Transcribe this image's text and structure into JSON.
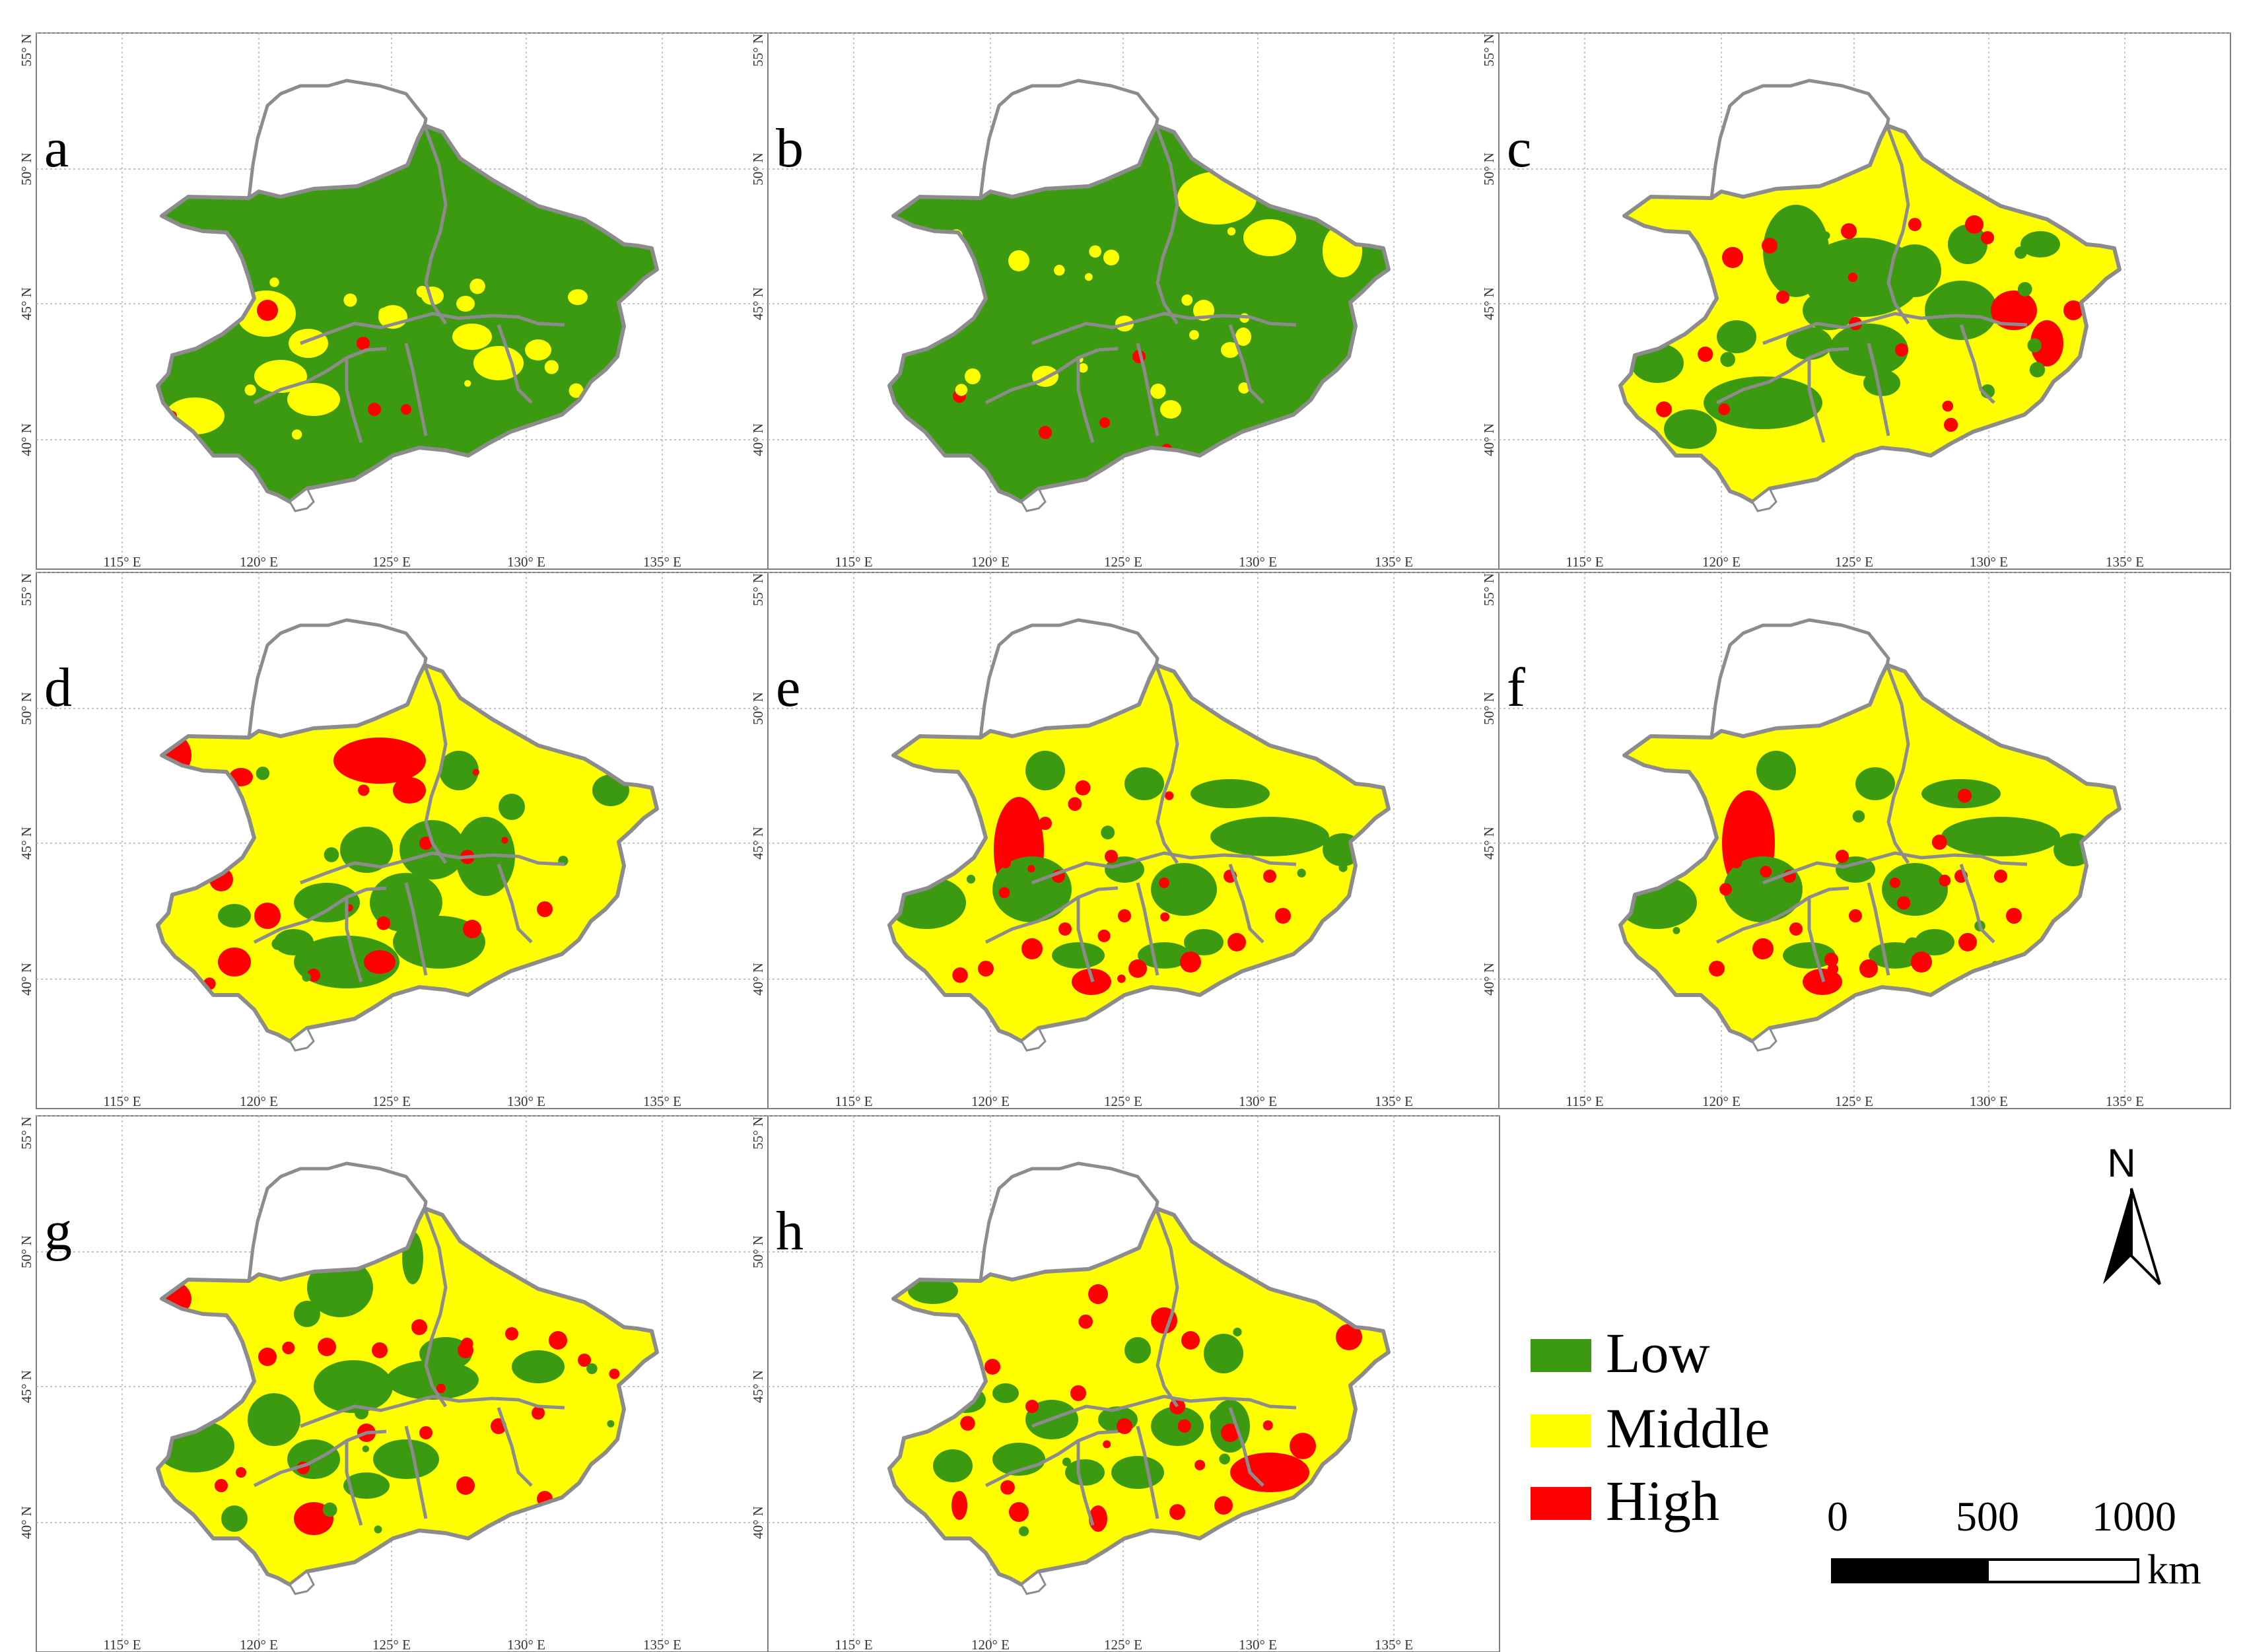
{
  "panels": [
    {
      "label": "a",
      "level": "low"
    },
    {
      "label": "b",
      "level": "low"
    },
    {
      "label": "c",
      "level": "middle"
    },
    {
      "label": "d",
      "level": "middle"
    },
    {
      "label": "e",
      "level": "middle"
    },
    {
      "label": "f",
      "level": "middle"
    },
    {
      "label": "g",
      "level": "middle"
    },
    {
      "label": "h",
      "level": "middle"
    }
  ],
  "axes": {
    "lon_ticks": [
      "115° E",
      "120° E",
      "125° E",
      "130° E",
      "135° E"
    ],
    "lat_ticks": [
      "55° N",
      "50° N",
      "45° N",
      "40° N"
    ]
  },
  "legend": {
    "items": [
      {
        "label": "Low",
        "color": "#3c9a10"
      },
      {
        "label": "Middle",
        "color": "#ffff00"
      },
      {
        "label": "High",
        "color": "#ff0000"
      }
    ]
  },
  "north_arrow": {
    "label": "N"
  },
  "scale_bar": {
    "ticks": [
      "0",
      "500",
      "1000"
    ],
    "unit": "km"
  },
  "colors": {
    "low": "#3c9a10",
    "middle": "#ffff00",
    "high": "#ff0000",
    "province_border": "#8c8c8c",
    "no_data": "#ffffff"
  }
}
